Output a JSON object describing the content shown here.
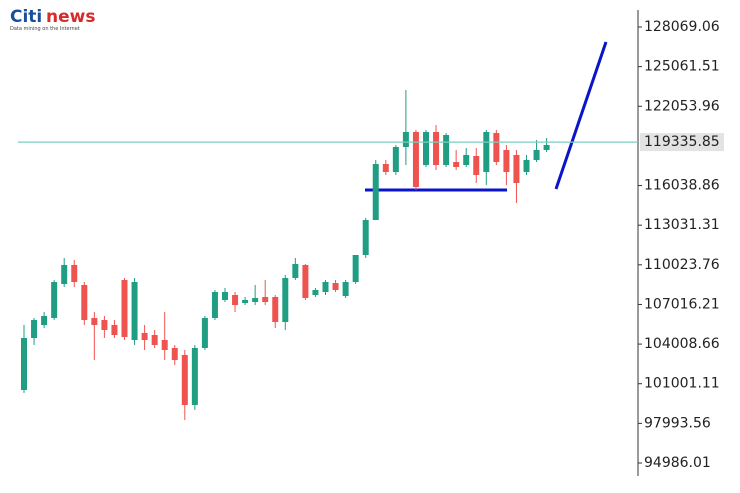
{
  "logo": {
    "brand": "Citi",
    "brand_suffix": "news",
    "tagline": "Data mining on the Internet"
  },
  "chart_data": {
    "type": "candlestick",
    "up_color": "#1f9e84",
    "down_color": "#ef5350",
    "price_line_color": "#7ccdbd",
    "ylim": [
      92709,
      130118
    ],
    "yticks": [
      94986.01,
      97993.56,
      101001.11,
      104008.66,
      107016.21,
      110023.76,
      113031.31,
      116038.86,
      122053.96,
      125061.51,
      128069.06
    ],
    "last_price": 119335.85,
    "open": [
      100525,
      104471,
      105457,
      105988,
      108568,
      110010,
      108492,
      105988,
      105836,
      105457,
      108872,
      104319,
      104850,
      104698,
      104319,
      103712,
      103181,
      99387,
      103712,
      105988,
      107354,
      107733,
      107126,
      107202,
      107582,
      107582,
      105685,
      109023,
      110010,
      107733,
      107961,
      108644,
      107658,
      108720,
      110769,
      113424,
      117674,
      117067,
      118964,
      120102,
      117598,
      120102,
      117598,
      117825,
      117598,
      118281,
      117067,
      120026,
      118736,
      118357,
      117067,
      117977,
      118736
    ],
    "high": [
      105457,
      105988,
      106443,
      108872,
      110541,
      110389,
      108720,
      106443,
      106140,
      105836,
      109023,
      109023,
      105457,
      105078,
      106443,
      103939,
      103560,
      103939,
      106140,
      108113,
      108265,
      107961,
      107582,
      108492,
      108872,
      107733,
      109251,
      110541,
      110086,
      108265,
      108872,
      108872,
      108872,
      110769,
      113576,
      117977,
      117977,
      119115,
      123289,
      120254,
      120254,
      120633,
      120026,
      118736,
      118888,
      118888,
      120254,
      120254,
      119115,
      118736,
      118357,
      119495,
      119647
    ],
    "low": [
      100300,
      103939,
      105229,
      105836,
      108340,
      108340,
      105457,
      102801,
      104471,
      104471,
      104319,
      103939,
      103560,
      103712,
      102801,
      102422,
      98248,
      99007,
      103560,
      105836,
      107202,
      106443,
      106975,
      106975,
      106975,
      105229,
      105078,
      108872,
      107354,
      107582,
      107733,
      107961,
      107506,
      108568,
      110541,
      113424,
      116839,
      116839,
      117598,
      115701,
      117446,
      117218,
      117446,
      117218,
      117446,
      116232,
      116080,
      117598,
      116080,
      114714,
      116839,
      117825,
      118584
    ],
    "close": [
      104471,
      105836,
      106140,
      108720,
      110010,
      108720,
      105836,
      105457,
      105078,
      104698,
      104546,
      108720,
      104319,
      103939,
      103560,
      102801,
      99387,
      103712,
      105988,
      107961,
      107961,
      106975,
      107354,
      107506,
      107202,
      105685,
      109023,
      110086,
      107506,
      108113,
      108720,
      108113,
      108720,
      110769,
      113424,
      117674,
      117067,
      118964,
      120102,
      115928,
      120102,
      117598,
      119874,
      117446,
      118357,
      116839,
      120102,
      117825,
      117067,
      116232,
      117977,
      118736,
      119115
    ]
  }
}
